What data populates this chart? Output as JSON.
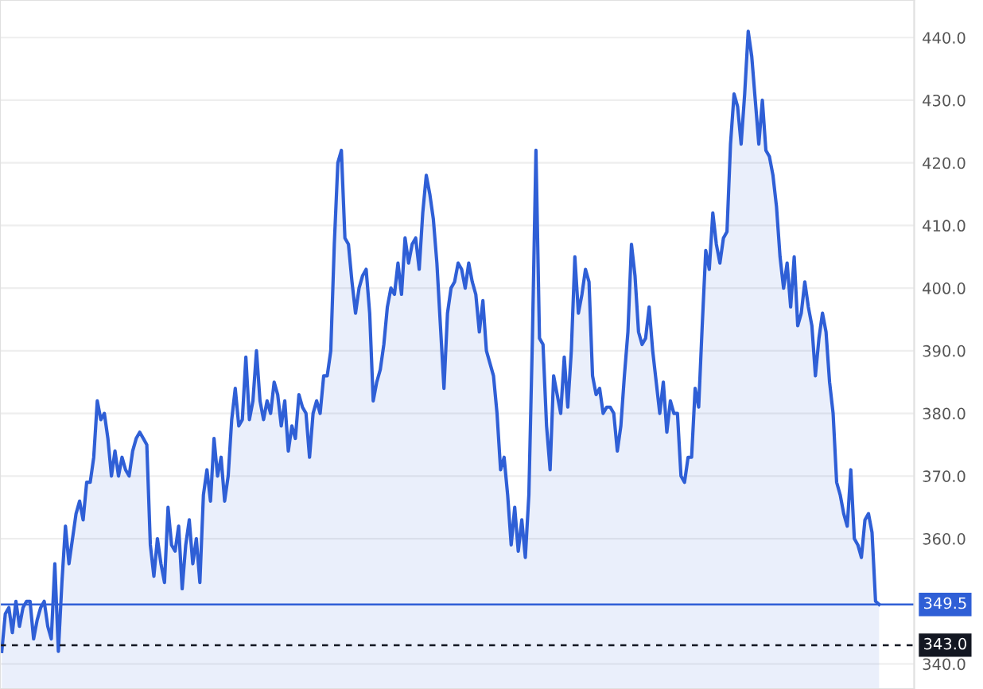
{
  "chart_data": {
    "type": "area",
    "categories": [
      null,
      null,
      null,
      null,
      null,
      null,
      null,
      null,
      null,
      null,
      null,
      null,
      null,
      null,
      null,
      null,
      null,
      null,
      null,
      null,
      null,
      null,
      null,
      null,
      null,
      null,
      null,
      null,
      null,
      null,
      null,
      null,
      null,
      null,
      null,
      null,
      null,
      null,
      null,
      null,
      null,
      null,
      null,
      null,
      null,
      null,
      null,
      null,
      null,
      null,
      null,
      null,
      null,
      null,
      null,
      null,
      null,
      null,
      null,
      null,
      null,
      null,
      null,
      null,
      null,
      null,
      null,
      null,
      null,
      null,
      null,
      null,
      null,
      null,
      null,
      null,
      null,
      null,
      null,
      null,
      null,
      null,
      null,
      null,
      null,
      null,
      null,
      null,
      null,
      null,
      null,
      null,
      null,
      null,
      null,
      null,
      null,
      null,
      null,
      null,
      null,
      null,
      null,
      null,
      null,
      null,
      null,
      null,
      null,
      null,
      null,
      null,
      null,
      null,
      null,
      null,
      null,
      null,
      null,
      null,
      null,
      null,
      null,
      null,
      null,
      null,
      null,
      null,
      null,
      null,
      null,
      null,
      null,
      null,
      null,
      null,
      null,
      null,
      null,
      null,
      null,
      null,
      null,
      null,
      null,
      null,
      null,
      null,
      null,
      null,
      null,
      null,
      null,
      null,
      null,
      null,
      null,
      null,
      null,
      null,
      null,
      null,
      null,
      null,
      null,
      null,
      null,
      null,
      null,
      null,
      null,
      null,
      null,
      null,
      null,
      null,
      null,
      null,
      null,
      null,
      null,
      null,
      null,
      null,
      null,
      null,
      null,
      null,
      null,
      null,
      null,
      null,
      null,
      null,
      null,
      null,
      null,
      null,
      null,
      null,
      null,
      null,
      null,
      null,
      null,
      null,
      null,
      null,
      null,
      null,
      null,
      null,
      null,
      null,
      null,
      null,
      null,
      null,
      null,
      null,
      null,
      null,
      null,
      null,
      null,
      null,
      null,
      null,
      null,
      null,
      null,
      null,
      null,
      null,
      null,
      null,
      null,
      null,
      null,
      null,
      null,
      null,
      null,
      null,
      null,
      null,
      null,
      null,
      null
    ],
    "series": [
      {
        "color": "#2f5fd6",
        "values": [
          342,
          348,
          349,
          345,
          350,
          346,
          349,
          350,
          350,
          344,
          347,
          349,
          350,
          346,
          344,
          356,
          342,
          353,
          362,
          356,
          360,
          364,
          366,
          363,
          369,
          369,
          373,
          382,
          379,
          380,
          376,
          370,
          374,
          370,
          373,
          371,
          370,
          374,
          376,
          377,
          376,
          375,
          359,
          354,
          360,
          356,
          353,
          365,
          359,
          358,
          362,
          352,
          359,
          363,
          356,
          360,
          353,
          367,
          371,
          366,
          376,
          370,
          373,
          366,
          370,
          379,
          384,
          378,
          379,
          389,
          379,
          382,
          390,
          382,
          379,
          382,
          380,
          385,
          383,
          378,
          382,
          374,
          378,
          376,
          383,
          381,
          380,
          373,
          380,
          382,
          380,
          386,
          386,
          390,
          407,
          420,
          422,
          408,
          407,
          401,
          396,
          400,
          402,
          403,
          396,
          382,
          385,
          387,
          391,
          397,
          400,
          399,
          404,
          399,
          408,
          404,
          407,
          408,
          403,
          412,
          418,
          415,
          411,
          404,
          394,
          384,
          396,
          400,
          401,
          404,
          403,
          400,
          404,
          401,
          399,
          393,
          398,
          390,
          388,
          386,
          380,
          371,
          373,
          367,
          359,
          365,
          358,
          363,
          357,
          367,
          392,
          422,
          392,
          391,
          378,
          371,
          386,
          383,
          380,
          389,
          381,
          390,
          405,
          396,
          399,
          403,
          401,
          386,
          383,
          384,
          380,
          381,
          381,
          380,
          374,
          378,
          386,
          393,
          407,
          402,
          393,
          391,
          392,
          397,
          390,
          385,
          380,
          385,
          377,
          382,
          380,
          380,
          370,
          369,
          373,
          373,
          384,
          381,
          394,
          406,
          403,
          412,
          407,
          404,
          408,
          409,
          423,
          431,
          429,
          423,
          431,
          441,
          437,
          430,
          423,
          430,
          422,
          421,
          418,
          413,
          405,
          400,
          404,
          397,
          405,
          394,
          396,
          401,
          397,
          394,
          386,
          392,
          396,
          393,
          385,
          380,
          369,
          367,
          364,
          362,
          371,
          360,
          359,
          357,
          363,
          364,
          361,
          350,
          349.5
        ]
      }
    ],
    "ylim": [
      336,
      446
    ],
    "yticks": [
      {
        "value": 340,
        "label": "340.0"
      },
      {
        "value": 360,
        "label": "360.0"
      },
      {
        "value": 370,
        "label": "370.0"
      },
      {
        "value": 380,
        "label": "380.0"
      },
      {
        "value": 390,
        "label": "390.0"
      },
      {
        "value": 400,
        "label": "400.0"
      },
      {
        "value": 410,
        "label": "410.0"
      },
      {
        "value": 420,
        "label": "420.0"
      },
      {
        "value": 430,
        "label": "430.0"
      },
      {
        "value": 440,
        "label": "440.0"
      }
    ],
    "ref_lines": [
      {
        "axis": "y",
        "value": 349.5,
        "label": "349.5",
        "color": "#2f5fd6",
        "line_style": "solid"
      },
      {
        "axis": "y",
        "value": 343.0,
        "label": "343.0",
        "color": "#131722",
        "line_style": "dashed"
      }
    ],
    "grid": "y",
    "tick_labels": "y"
  }
}
